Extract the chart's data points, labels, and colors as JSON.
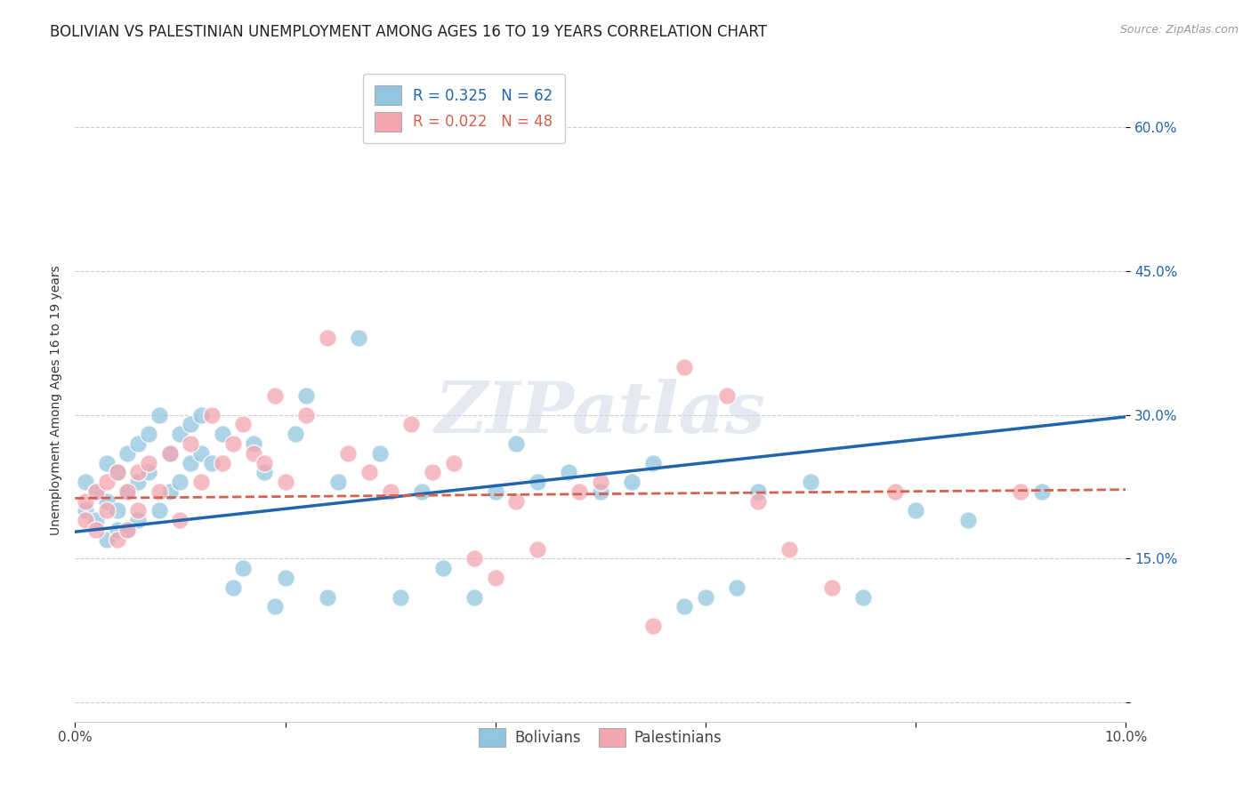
{
  "title": "BOLIVIAN VS PALESTINIAN UNEMPLOYMENT AMONG AGES 16 TO 19 YEARS CORRELATION CHART",
  "source": "Source: ZipAtlas.com",
  "ylabel": "Unemployment Among Ages 16 to 19 years",
  "xlim": [
    0.0,
    0.1
  ],
  "ylim": [
    -0.02,
    0.65
  ],
  "xticks": [
    0.0,
    0.02,
    0.04,
    0.06,
    0.08,
    0.1
  ],
  "ytick_positions": [
    0.0,
    0.15,
    0.3,
    0.45,
    0.6
  ],
  "bolivians_color": "#92c5de",
  "palestinians_color": "#f4a6b0",
  "trendline_bolivians_color": "#2166ac",
  "trendline_palestinians_color": "#d6604d",
  "R_bolivians": 0.325,
  "N_bolivians": 62,
  "R_palestinians": 0.022,
  "N_palestinians": 48,
  "background_color": "#ffffff",
  "grid_color": "#cccccc",
  "watermark": "ZIPatlas",
  "title_fontsize": 12,
  "source_fontsize": 9,
  "axis_label_fontsize": 10,
  "tick_fontsize": 11,
  "legend_fontsize": 12,
  "bolivians_x": [
    0.001,
    0.001,
    0.002,
    0.002,
    0.003,
    0.003,
    0.003,
    0.004,
    0.004,
    0.004,
    0.005,
    0.005,
    0.005,
    0.006,
    0.006,
    0.006,
    0.007,
    0.007,
    0.008,
    0.008,
    0.009,
    0.009,
    0.01,
    0.01,
    0.011,
    0.011,
    0.012,
    0.012,
    0.013,
    0.014,
    0.015,
    0.016,
    0.017,
    0.018,
    0.019,
    0.02,
    0.021,
    0.022,
    0.024,
    0.025,
    0.027,
    0.029,
    0.031,
    0.033,
    0.035,
    0.038,
    0.04,
    0.042,
    0.044,
    0.047,
    0.05,
    0.053,
    0.055,
    0.058,
    0.06,
    0.063,
    0.065,
    0.07,
    0.075,
    0.08,
    0.085,
    0.092
  ],
  "bolivians_y": [
    0.2,
    0.23,
    0.22,
    0.19,
    0.25,
    0.21,
    0.17,
    0.24,
    0.2,
    0.18,
    0.26,
    0.22,
    0.18,
    0.27,
    0.23,
    0.19,
    0.28,
    0.24,
    0.3,
    0.2,
    0.26,
    0.22,
    0.28,
    0.23,
    0.29,
    0.25,
    0.3,
    0.26,
    0.25,
    0.28,
    0.12,
    0.14,
    0.27,
    0.24,
    0.1,
    0.13,
    0.28,
    0.32,
    0.11,
    0.23,
    0.38,
    0.26,
    0.11,
    0.22,
    0.14,
    0.11,
    0.22,
    0.27,
    0.23,
    0.24,
    0.22,
    0.23,
    0.25,
    0.1,
    0.11,
    0.12,
    0.22,
    0.23,
    0.11,
    0.2,
    0.19,
    0.22
  ],
  "palestinians_x": [
    0.001,
    0.001,
    0.002,
    0.002,
    0.003,
    0.003,
    0.004,
    0.004,
    0.005,
    0.005,
    0.006,
    0.006,
    0.007,
    0.008,
    0.009,
    0.01,
    0.011,
    0.012,
    0.013,
    0.014,
    0.015,
    0.016,
    0.017,
    0.018,
    0.019,
    0.02,
    0.022,
    0.024,
    0.026,
    0.028,
    0.03,
    0.032,
    0.034,
    0.036,
    0.038,
    0.04,
    0.042,
    0.044,
    0.048,
    0.05,
    0.055,
    0.058,
    0.062,
    0.065,
    0.068,
    0.072,
    0.078,
    0.09
  ],
  "palestinians_y": [
    0.21,
    0.19,
    0.22,
    0.18,
    0.23,
    0.2,
    0.24,
    0.17,
    0.22,
    0.18,
    0.24,
    0.2,
    0.25,
    0.22,
    0.26,
    0.19,
    0.27,
    0.23,
    0.3,
    0.25,
    0.27,
    0.29,
    0.26,
    0.25,
    0.32,
    0.23,
    0.3,
    0.38,
    0.26,
    0.24,
    0.22,
    0.29,
    0.24,
    0.25,
    0.15,
    0.13,
    0.21,
    0.16,
    0.22,
    0.23,
    0.08,
    0.35,
    0.32,
    0.21,
    0.16,
    0.12,
    0.22,
    0.22
  ],
  "bol_trendline": [
    0.178,
    0.298
  ],
  "pal_trendline": [
    0.213,
    0.222
  ]
}
